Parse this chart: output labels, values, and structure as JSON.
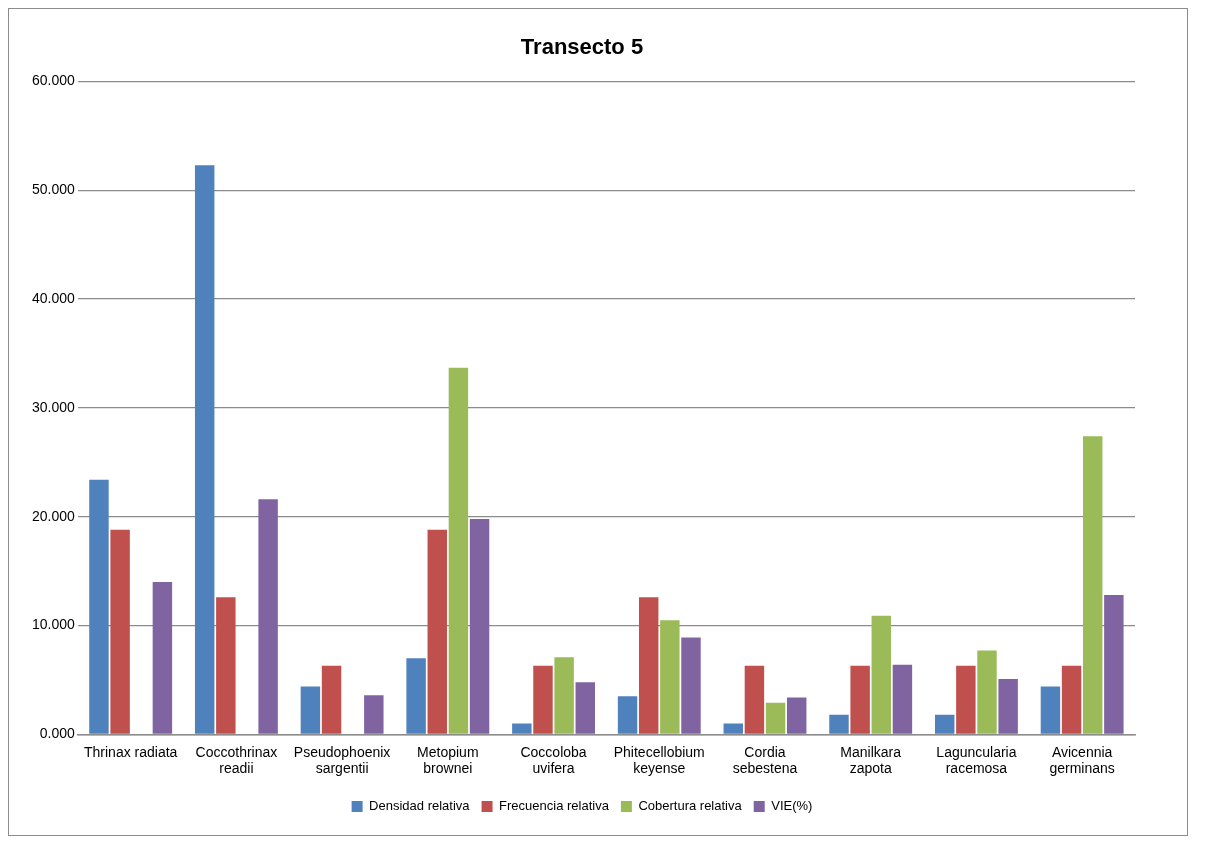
{
  "chart_data": {
    "type": "bar",
    "title": "Transecto 5",
    "categories": [
      "Thrinax radiata",
      "Coccothrinax readii",
      "Pseudophoenix sargentii",
      "Metopium brownei",
      "Coccoloba uvifera",
      "Phitecellobium keyense",
      "Cordia sebestena",
      "Manilkara zapota",
      "Laguncularia racemosa",
      "Avicennia germinans"
    ],
    "series": [
      {
        "name": "Densidad relativa",
        "color": "#4f81bd",
        "values": [
          23.4,
          52.3,
          4.4,
          7.0,
          1.0,
          3.5,
          1.0,
          1.8,
          1.8,
          4.4
        ]
      },
      {
        "name": "Frecuencia relativa",
        "color": "#c0504d",
        "values": [
          18.8,
          12.6,
          6.3,
          18.8,
          6.3,
          12.6,
          6.3,
          6.3,
          6.3,
          6.3
        ]
      },
      {
        "name": "Cobertura relativa",
        "color": "#9bbb59",
        "values": [
          0,
          0,
          0,
          33.7,
          7.1,
          10.5,
          2.9,
          10.9,
          7.7,
          27.4
        ]
      },
      {
        "name": "VIE(%)",
        "color": "#8064a2",
        "values": [
          14.0,
          21.6,
          3.6,
          19.8,
          4.8,
          8.9,
          3.4,
          6.4,
          5.1,
          12.8
        ]
      }
    ],
    "ylim": [
      0,
      60
    ],
    "yticks": [
      {
        "value": 0,
        "label": "0.000"
      },
      {
        "value": 10,
        "label": "10.000"
      },
      {
        "value": 20,
        "label": "20.000"
      },
      {
        "value": 30,
        "label": "30.000"
      },
      {
        "value": 40,
        "label": "40.000"
      },
      {
        "value": 50,
        "label": "50.000"
      },
      {
        "value": 60,
        "label": "60.000"
      }
    ],
    "grid": "y",
    "legend": "bottom"
  }
}
